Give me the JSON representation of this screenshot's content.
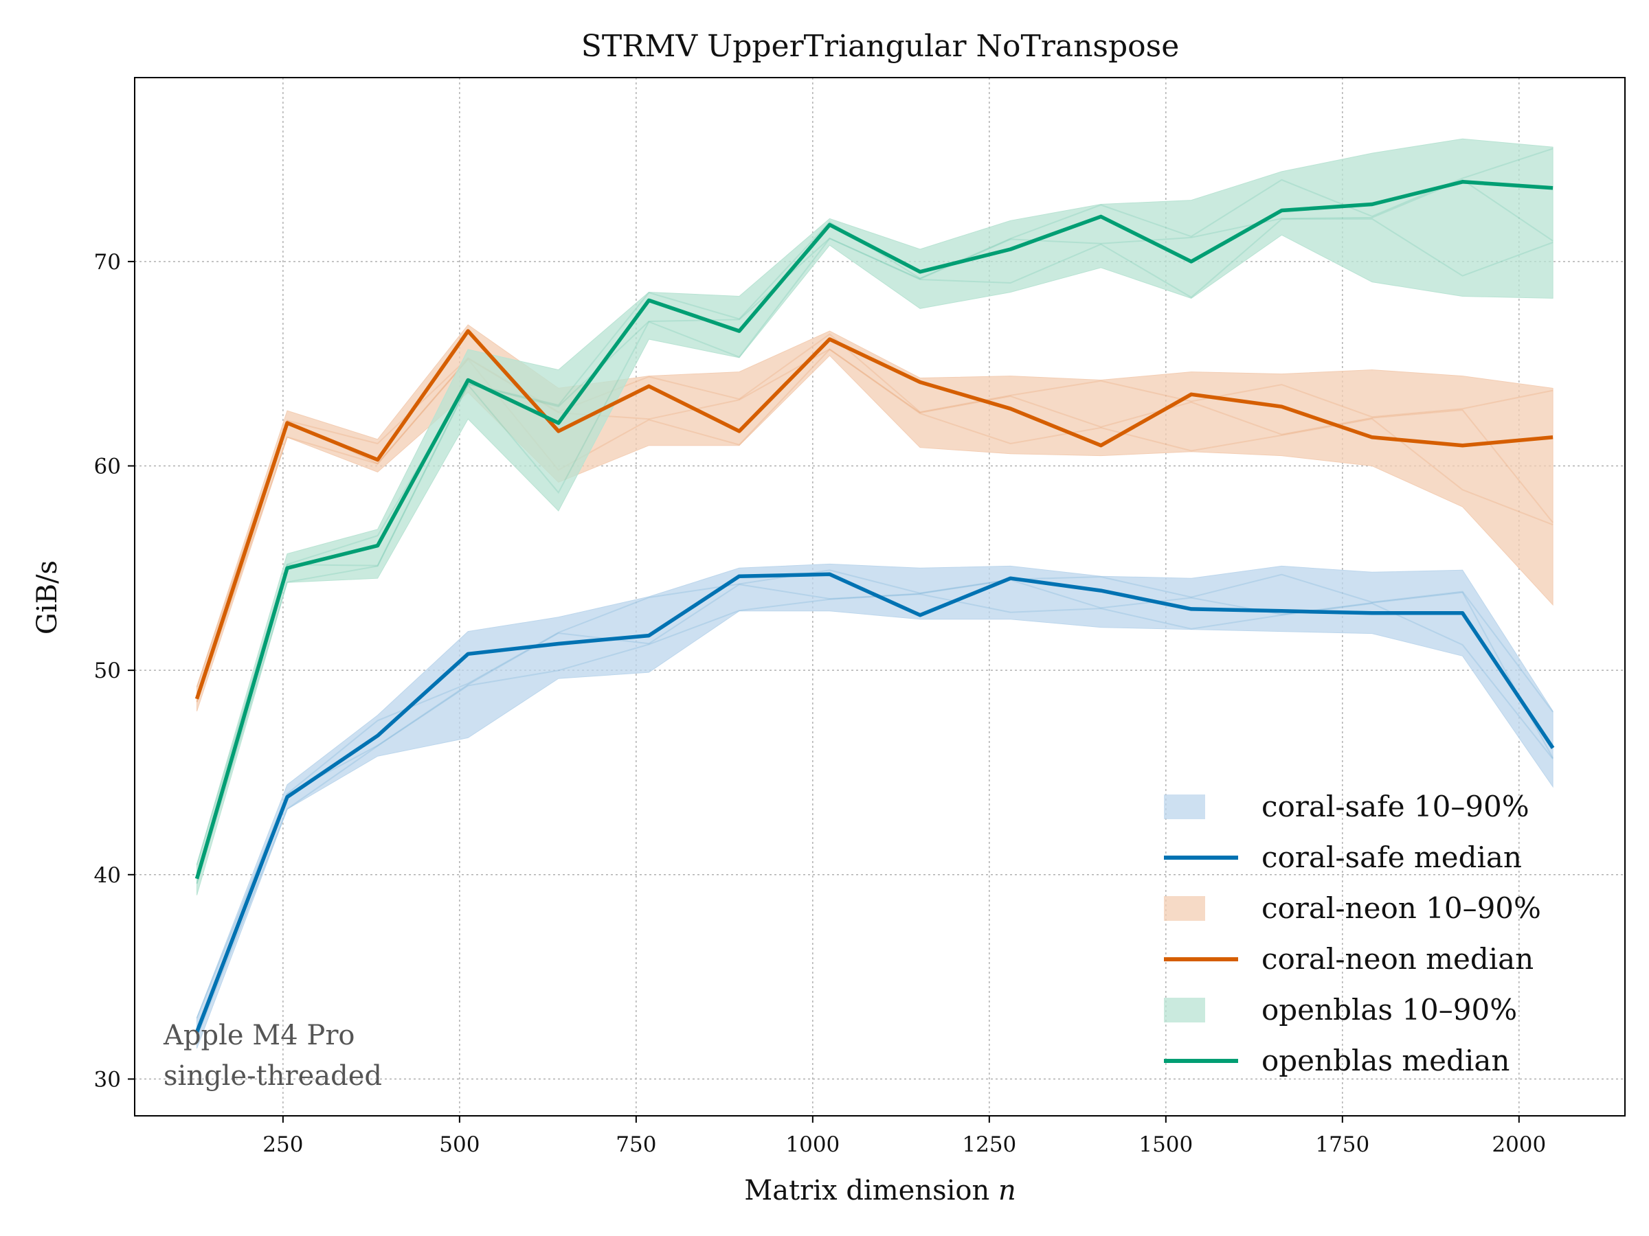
{
  "chart_data": {
    "type": "line",
    "title": "STRMV  UpperTriangular  NoTranspose",
    "xlabel": "Matrix dimension",
    "xlabel_var": "n",
    "ylabel": "GiB/s",
    "xlim": [
      40,
      2150
    ],
    "ylim": [
      28.2,
      79
    ],
    "xticks": [
      250,
      500,
      750,
      1000,
      1250,
      1500,
      1750,
      2000
    ],
    "yticks": [
      30,
      40,
      50,
      60,
      70
    ],
    "grid": true,
    "legend_position": "lower-right",
    "x": [
      128,
      256,
      384,
      512,
      640,
      768,
      896,
      1024,
      1152,
      1280,
      1408,
      1536,
      1664,
      1792,
      1920,
      2048
    ],
    "series": [
      {
        "name": "coral-safe median",
        "band_name": "coral-safe 10–90%",
        "color": "#0072b2",
        "band_color": "#bcd6ec",
        "median": [
          32.3,
          43.8,
          46.8,
          50.8,
          51.3,
          51.7,
          54.6,
          54.7,
          52.7,
          54.5,
          53.9,
          53.0,
          52.9,
          52.8,
          52.8,
          46.2
        ],
        "p10": [
          31.5,
          43.2,
          45.8,
          46.7,
          49.6,
          49.9,
          52.9,
          52.9,
          52.5,
          52.5,
          52.1,
          52.0,
          51.9,
          51.8,
          50.7,
          44.3
        ],
        "p90": [
          33.0,
          44.4,
          47.8,
          51.9,
          52.6,
          53.6,
          55.0,
          55.2,
          55.0,
          55.1,
          54.6,
          54.5,
          55.1,
          54.8,
          54.9,
          48.0
        ]
      },
      {
        "name": "coral-neon median",
        "band_name": "coral-neon 10–90%",
        "color": "#d55e00",
        "band_color": "#f3cdb3",
        "median": [
          48.6,
          62.1,
          60.3,
          66.6,
          61.7,
          63.9,
          61.7,
          66.2,
          64.1,
          62.8,
          61.0,
          63.5,
          62.9,
          61.4,
          61.0,
          61.4
        ],
        "p10": [
          48.0,
          61.4,
          59.7,
          63.6,
          59.2,
          61.0,
          61.0,
          65.4,
          60.9,
          60.6,
          60.5,
          60.7,
          60.5,
          60.0,
          58.0,
          53.2
        ],
        "p90": [
          49.2,
          62.7,
          61.3,
          66.9,
          63.8,
          64.4,
          64.6,
          66.6,
          64.3,
          64.4,
          64.2,
          64.6,
          64.5,
          64.7,
          64.4,
          63.8
        ]
      },
      {
        "name": "openblas median",
        "band_name": "openblas 10–90%",
        "color": "#009e73",
        "band_color": "#b8e3d3",
        "median": [
          39.8,
          55.0,
          56.1,
          64.2,
          62.1,
          68.1,
          66.6,
          71.8,
          69.5,
          70.6,
          72.2,
          70.0,
          72.5,
          72.8,
          73.9,
          73.6
        ],
        "p10": [
          39.0,
          54.3,
          54.5,
          62.3,
          57.8,
          66.2,
          65.3,
          70.8,
          67.7,
          68.5,
          69.7,
          68.2,
          71.3,
          69.0,
          68.3,
          68.2
        ],
        "p90": [
          40.5,
          55.7,
          56.9,
          65.7,
          64.7,
          68.5,
          68.3,
          72.1,
          70.6,
          72.0,
          72.8,
          73.0,
          74.4,
          75.3,
          76.0,
          75.6
        ]
      }
    ],
    "annotation": [
      "Apple M4 Pro",
      "single-threaded"
    ]
  }
}
